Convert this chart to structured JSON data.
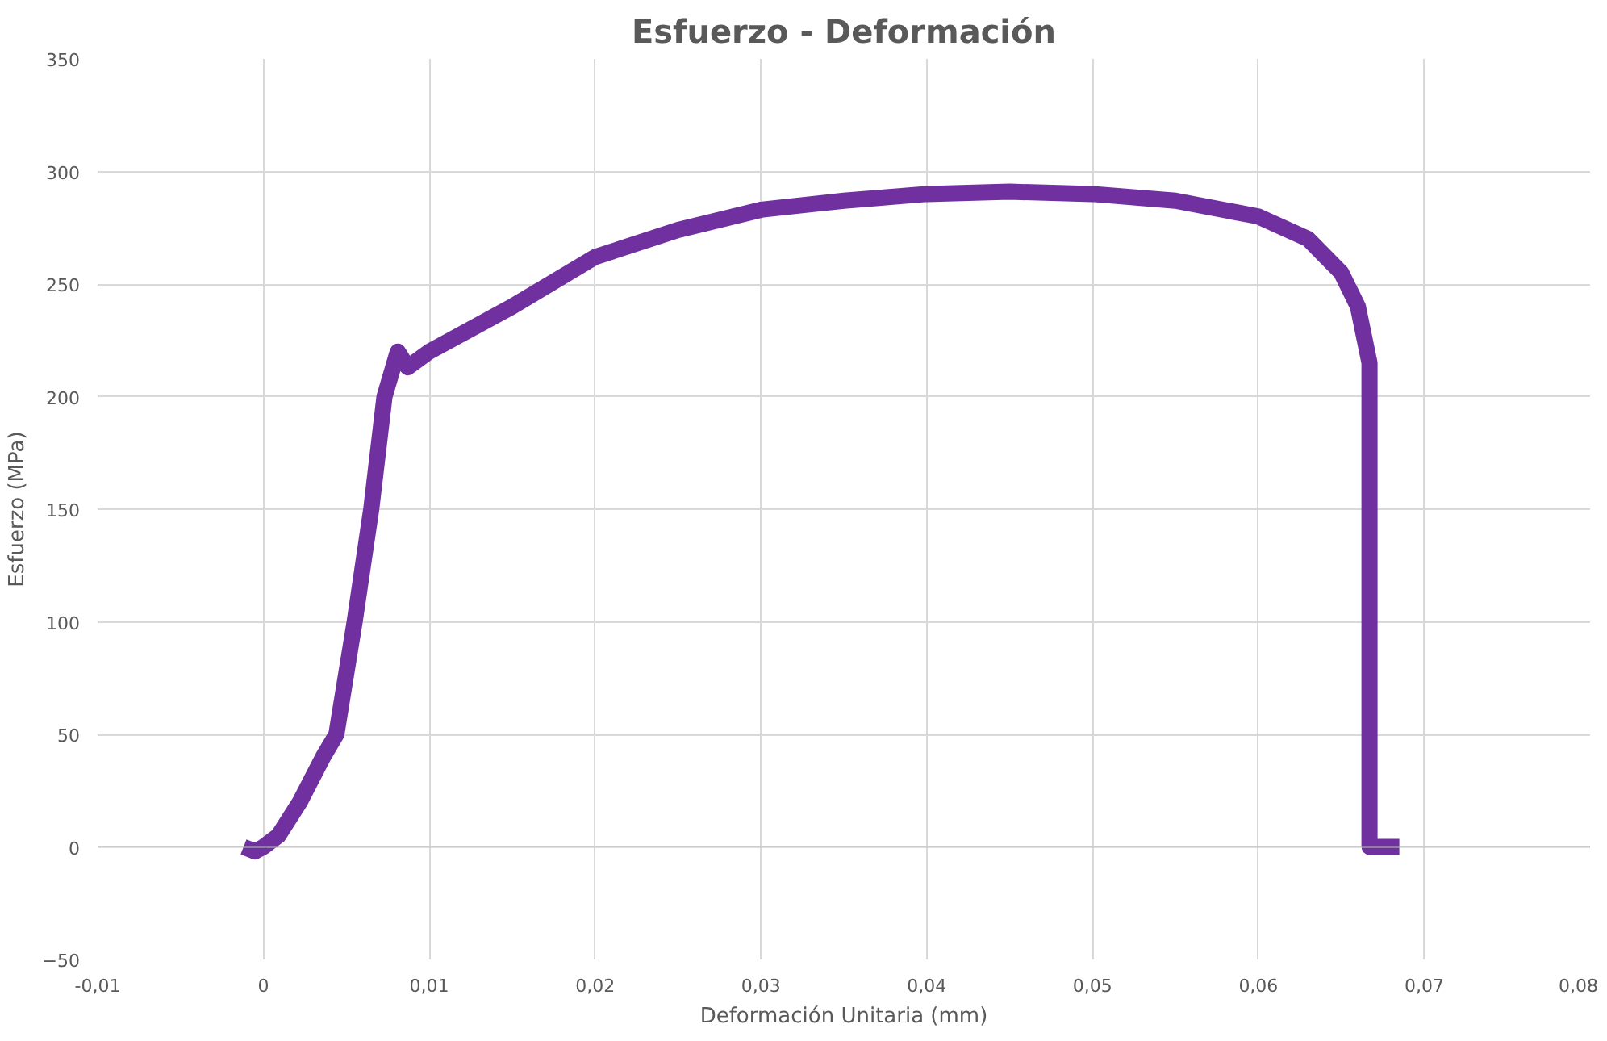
{
  "chart_data": {
    "type": "line",
    "title": "Esfuerzo - Deformación",
    "xlabel": "Deformación Unitaria (mm)",
    "ylabel": "Esfuerzo (MPa)",
    "series": [
      {
        "color": "#7030a0",
        "x": [
          -0.0012,
          -0.0005,
          0,
          0.0009,
          0.0022,
          0.0036,
          0.0044,
          0.0055,
          0.0065,
          0.0073,
          0.0081,
          0.0087,
          0.01,
          0.015,
          0.02,
          0.025,
          0.03,
          0.035,
          0.04,
          0.045,
          0.05,
          0.055,
          0.06,
          0.063,
          0.065,
          0.066,
          0.0667,
          0.0667,
          0.0672,
          0.068,
          0.0685
        ],
        "values": [
          0,
          -2,
          0,
          5,
          20,
          40,
          50,
          100,
          150,
          200,
          220,
          213,
          220,
          240,
          262,
          274,
          283,
          287,
          290,
          291,
          290,
          287,
          280,
          270,
          255,
          240,
          215,
          0,
          0,
          0,
          0
        ]
      }
    ],
    "xlim": [
      -0.01,
      0.08
    ],
    "ylim": [
      -50,
      350
    ],
    "xticks": [
      {
        "value": -0.01,
        "label": "-0,01"
      },
      0,
      {
        "value": 0.01,
        "label": "0,01"
      },
      {
        "value": 0.02,
        "label": "0,02"
      },
      {
        "value": 0.03,
        "label": "0,03"
      },
      {
        "value": 0.04,
        "label": "0,04"
      },
      {
        "value": 0.05,
        "label": "0,05"
      },
      {
        "value": 0.06,
        "label": "0,06"
      },
      {
        "value": 0.07,
        "label": "0,07"
      },
      {
        "value": 0.08,
        "label": "0,08"
      }
    ],
    "yticks": [
      -50,
      0,
      50,
      100,
      150,
      200,
      250,
      300,
      350
    ],
    "grid": true,
    "line_style": "solid"
  }
}
